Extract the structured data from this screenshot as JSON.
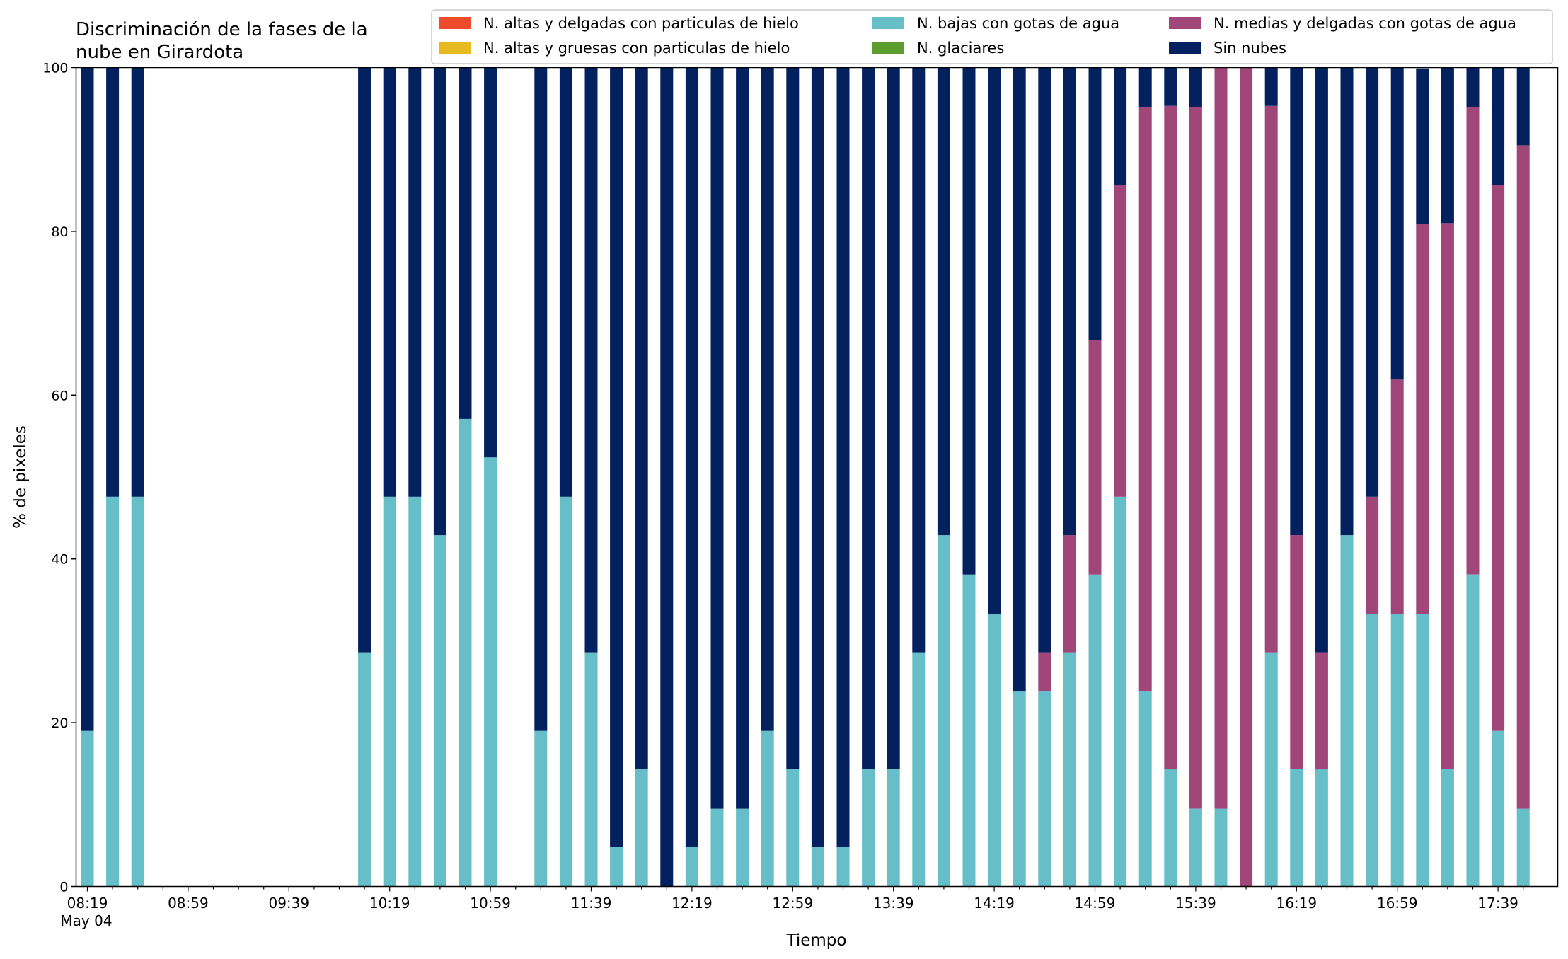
{
  "chart_data": {
    "type": "bar",
    "stacked": true,
    "title_lines": [
      "Discriminación de la fases de la",
      "nube en Girardota"
    ],
    "xlabel": "Tiempo",
    "ylabel": "% de pixeles",
    "ylim": [
      0,
      100
    ],
    "yticks": [
      0,
      20,
      40,
      60,
      80,
      100
    ],
    "grid": false,
    "legend_position": "top-right",
    "x_tick_labels": [
      {
        "slot": 0,
        "label": "08:19"
      },
      {
        "slot": 4,
        "label": "08:59"
      },
      {
        "slot": 8,
        "label": "09:39"
      },
      {
        "slot": 12,
        "label": "10:19"
      },
      {
        "slot": 16,
        "label": "10:59"
      },
      {
        "slot": 20,
        "label": "11:39"
      },
      {
        "slot": 24,
        "label": "12:19"
      },
      {
        "slot": 28,
        "label": "12:59"
      },
      {
        "slot": 32,
        "label": "13:39"
      },
      {
        "slot": 36,
        "label": "14:19"
      },
      {
        "slot": 40,
        "label": "14:59"
      },
      {
        "slot": 44,
        "label": "15:39"
      },
      {
        "slot": 48,
        "label": "16:19"
      },
      {
        "slot": 52,
        "label": "16:59"
      },
      {
        "slot": 56,
        "label": "17:39"
      }
    ],
    "x_date_label": "May 04",
    "slot_count": 58,
    "slots_with_bars": [
      0,
      1,
      2,
      11,
      12,
      13,
      14,
      15,
      16,
      18,
      19,
      20,
      21,
      22,
      23,
      24,
      25,
      26,
      27,
      28,
      29,
      30,
      31,
      32,
      33,
      34,
      35,
      36,
      37,
      38,
      39,
      40,
      41,
      42,
      43,
      44,
      45,
      46,
      47,
      48,
      49,
      50,
      51,
      52,
      53,
      54,
      55,
      56,
      57
    ],
    "series": [
      {
        "name": "N. altas y delgadas con particulas de hielo",
        "color": "#ee4b2b",
        "values": [
          0,
          0,
          0,
          0,
          0,
          0,
          0,
          0,
          0,
          0,
          0,
          0,
          0,
          0,
          0,
          0,
          0,
          0,
          0,
          0,
          0,
          0,
          0,
          0,
          0,
          0,
          0,
          0,
          0,
          0,
          0,
          0,
          0,
          0,
          0,
          0,
          0,
          0,
          0,
          0,
          0,
          0,
          0,
          0,
          0,
          0,
          0,
          0,
          0
        ]
      },
      {
        "name": "N. altas y gruesas con particulas de hielo",
        "color": "#e6b91e",
        "values": [
          0,
          0,
          0,
          0,
          0,
          0,
          0,
          0,
          0,
          0,
          0,
          0,
          0,
          0,
          0,
          0,
          0,
          0,
          0,
          0,
          0,
          0,
          0,
          0,
          0,
          0,
          0,
          0,
          0,
          0,
          0,
          0,
          0,
          0,
          0,
          0,
          0,
          0,
          0,
          0,
          0,
          0,
          0,
          0,
          0,
          0,
          0,
          0,
          0
        ]
      },
      {
        "name": "N. bajas con gotas de agua",
        "color": "#66bec9",
        "values": [
          19,
          47.6,
          47.6,
          28.6,
          47.6,
          47.6,
          42.9,
          57.1,
          52.4,
          19,
          47.6,
          28.6,
          4.8,
          14.3,
          0,
          4.8,
          9.5,
          9.5,
          19,
          14.3,
          4.8,
          4.8,
          14.3,
          14.3,
          28.6,
          42.9,
          38.1,
          33.3,
          23.8,
          23.8,
          28.6,
          38.1,
          47.6,
          23.8,
          14.3,
          9.5,
          9.5,
          0,
          28.6,
          14.3,
          14.3,
          42.9,
          33.3,
          33.3,
          33.3,
          14.3,
          38.1,
          19,
          9.5
        ]
      },
      {
        "name": "N. glaciares",
        "color": "#5b9e30",
        "values": [
          0,
          0,
          0,
          0,
          0,
          0,
          0,
          0,
          0,
          0,
          0,
          0,
          0,
          0,
          0,
          0,
          0,
          0,
          0,
          0,
          0,
          0,
          0,
          0,
          0,
          0,
          0,
          0,
          0,
          0,
          0,
          0,
          0,
          0,
          0,
          0,
          0,
          0,
          0,
          0,
          0,
          0,
          0,
          0,
          0,
          0,
          0,
          0,
          0
        ]
      },
      {
        "name": "N. medias y delgadas con gotas de agua",
        "color": "#a04679",
        "values": [
          0,
          0,
          0,
          0,
          0,
          0,
          0,
          0,
          0,
          0,
          0,
          0,
          0,
          0,
          0,
          0,
          0,
          0,
          0,
          0,
          0,
          0,
          0,
          0,
          0,
          0,
          0,
          0,
          0,
          4.8,
          14.3,
          28.6,
          38.1,
          71.4,
          81,
          85.7,
          90.5,
          100,
          66.7,
          28.6,
          14.3,
          0,
          14.3,
          28.6,
          47.6,
          66.7,
          57.1,
          66.7,
          81
        ]
      },
      {
        "name": "Sin nubes",
        "color": "#03205f",
        "values": [
          81,
          52.4,
          52.4,
          71.4,
          52.4,
          52.4,
          57.1,
          42.9,
          47.6,
          81,
          52.4,
          71.4,
          95.2,
          85.7,
          100,
          95.2,
          90.5,
          90.5,
          81,
          85.7,
          95.2,
          95.2,
          85.7,
          85.7,
          71.4,
          57.1,
          61.9,
          66.7,
          76.2,
          71.4,
          57.1,
          33.3,
          14.3,
          4.8,
          4.8,
          4.8,
          0,
          0,
          4.8,
          57.1,
          71.4,
          57.1,
          52.4,
          38.1,
          19,
          19,
          4.8,
          14.3,
          9.5
        ]
      }
    ]
  }
}
